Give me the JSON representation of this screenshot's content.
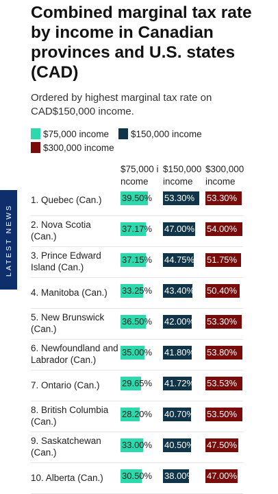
{
  "chart_data": {
    "type": "bar",
    "title": "Combined marginal tax rate by income in Canadian provinces and U.S. states (CAD)",
    "subtitle": "Ordered by highest marginal tax rate on CAD$150,000 income.",
    "legend_position": "top",
    "series": [
      {
        "name": "$75,000 income",
        "column_header": "$75,000 income",
        "color": "#2bd9ad",
        "labels": [
          "39.50%",
          "37.17%",
          "37.15%",
          "33.25%",
          "36.50%",
          "35.00%",
          "29.65%",
          "28.20%",
          "33.00%",
          "30.50%"
        ],
        "values": [
          39.5,
          37.17,
          37.15,
          33.25,
          36.5,
          35.0,
          29.65,
          28.2,
          33.0,
          30.5
        ],
        "label_color": "#1a1a1a"
      },
      {
        "name": "$150,000 income",
        "column_header": "$150,000 income",
        "color": "#103548",
        "labels": [
          "53.30%",
          "47.00%",
          "44.75%",
          "43.40%",
          "42.00%",
          "41.80%",
          "41.72%",
          "40.70%",
          "40.50%",
          "38.00%"
        ],
        "values": [
          53.3,
          47.0,
          44.75,
          43.4,
          42.0,
          41.8,
          41.72,
          40.7,
          40.5,
          38.0
        ],
        "label_color": "#ffffff"
      },
      {
        "name": "$300,000 income",
        "column_header": "$300,000 income",
        "color": "#7a0b0b",
        "labels": [
          "53.30%",
          "54.00%",
          "51.75%",
          "50.40%",
          "53.30%",
          "53.80%",
          "53.53%",
          "53.50%",
          "47.50%",
          "47.00%"
        ],
        "values": [
          53.3,
          54.0,
          51.75,
          50.4,
          53.3,
          53.8,
          53.53,
          53.5,
          47.5,
          47.0
        ],
        "label_color": "#ffffff"
      }
    ],
    "categories": [
      "1. Quebec (Can.)",
      "2. Nova Scotia (Can.)",
      "3. Prince Edward Island (Can.)",
      "4. Manitoba (Can.)",
      "5. New Brunswick (Can.)",
      "6. Newfoundland and Labrador (Can.)",
      "7. Ontario (Can.)",
      "8. British Columbia (Can.)",
      "9. Saskatchewan (Can.)",
      "10. Alberta (Can.)"
    ]
  },
  "side_tab": {
    "label": "LATEST NEWS"
  }
}
